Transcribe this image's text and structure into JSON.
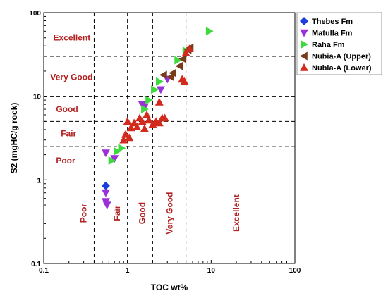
{
  "chart_data": {
    "type": "scatter",
    "title": "",
    "xlabel": "TOC wt%",
    "ylabel": "S2 (mgHC/g rock)",
    "xscale": "log",
    "yscale": "log",
    "xlim": [
      0.1,
      100
    ],
    "ylim": [
      0.1,
      100
    ],
    "x_ticks": [
      "0.1",
      "1",
      "10",
      "100"
    ],
    "y_ticks": [
      "0.1",
      "1",
      "10",
      "100"
    ],
    "grid": false,
    "legend_position": "top-right",
    "threshold_lines_x": [
      0.4,
      1,
      2,
      5
    ],
    "threshold_lines_y": [
      2.5,
      5,
      10,
      30
    ],
    "zone_color": "#b22222",
    "s2_zones": [
      {
        "label": "Excellent",
        "x": 0.13,
        "y": 50
      },
      {
        "label": "Very Good",
        "x": 0.12,
        "y": 17
      },
      {
        "label": "Good",
        "x": 0.14,
        "y": 7
      },
      {
        "label": "Fair",
        "x": 0.16,
        "y": 3.6
      },
      {
        "label": "Poor",
        "x": 0.14,
        "y": 1.7
      }
    ],
    "toc_zones": [
      {
        "label": "Poor",
        "x": 0.3,
        "y": 0.4
      },
      {
        "label": "Fair",
        "x": 0.75,
        "y": 0.4
      },
      {
        "label": "Good",
        "x": 1.5,
        "y": 0.4
      },
      {
        "label": "Very Good",
        "x": 3.2,
        "y": 0.4
      },
      {
        "label": "Excellent",
        "x": 20,
        "y": 0.4
      }
    ],
    "series": [
      {
        "name": "Thebes Fm",
        "marker": "diamond",
        "color": "#1c3fdc",
        "points": [
          [
            0.55,
            0.85
          ]
        ]
      },
      {
        "name": "Matulla Fm",
        "marker": "triangle-down",
        "color": "#9b30d9",
        "points": [
          [
            0.55,
            0.7
          ],
          [
            0.55,
            0.55
          ],
          [
            0.57,
            0.5
          ],
          [
            0.55,
            2.1
          ],
          [
            0.7,
            1.8
          ],
          [
            1.5,
            8
          ],
          [
            1.6,
            7.5
          ],
          [
            2.5,
            12
          ],
          [
            3,
            16
          ]
        ]
      },
      {
        "name": "Raha Fm",
        "marker": "triangle-right",
        "color": "#3dd93d",
        "points": [
          [
            9.5,
            60
          ],
          [
            0.65,
            1.7
          ],
          [
            0.75,
            2.2
          ],
          [
            0.85,
            2.4
          ],
          [
            1.6,
            7
          ],
          [
            1.8,
            9
          ],
          [
            2.1,
            12
          ],
          [
            2.4,
            15
          ],
          [
            4,
            27
          ],
          [
            5,
            35
          ]
        ]
      },
      {
        "name": "Nubia-A (Upper)",
        "marker": "triangle-left",
        "color": "#7a3b1a",
        "points": [
          [
            2.7,
            18
          ],
          [
            3.3,
            17
          ],
          [
            3.5,
            19
          ],
          [
            4.2,
            23
          ],
          [
            4.6,
            28
          ],
          [
            5.3,
            36
          ],
          [
            5.6,
            38
          ]
        ]
      },
      {
        "name": "Nubia-A (Lower)",
        "marker": "triangle-up",
        "color": "#d32a1e",
        "points": [
          [
            0.9,
            3.0
          ],
          [
            0.95,
            3.5
          ],
          [
            1.05,
            3.2
          ],
          [
            1.1,
            4.2
          ],
          [
            1.2,
            4.8
          ],
          [
            1.3,
            4.3
          ],
          [
            1.4,
            5.5
          ],
          [
            1.5,
            5.0
          ],
          [
            1.6,
            4.1
          ],
          [
            1.7,
            6.0
          ],
          [
            1.8,
            5.2
          ],
          [
            2.0,
            4.6
          ],
          [
            2.2,
            5.0
          ],
          [
            2.4,
            4.8
          ],
          [
            2.6,
            5.5
          ],
          [
            2.8,
            5.5
          ],
          [
            2.4,
            8.5
          ],
          [
            1.0,
            5.0
          ],
          [
            4.5,
            16
          ],
          [
            4.8,
            15
          ],
          [
            5.0,
            33
          ],
          [
            5.5,
            37
          ]
        ]
      }
    ]
  }
}
